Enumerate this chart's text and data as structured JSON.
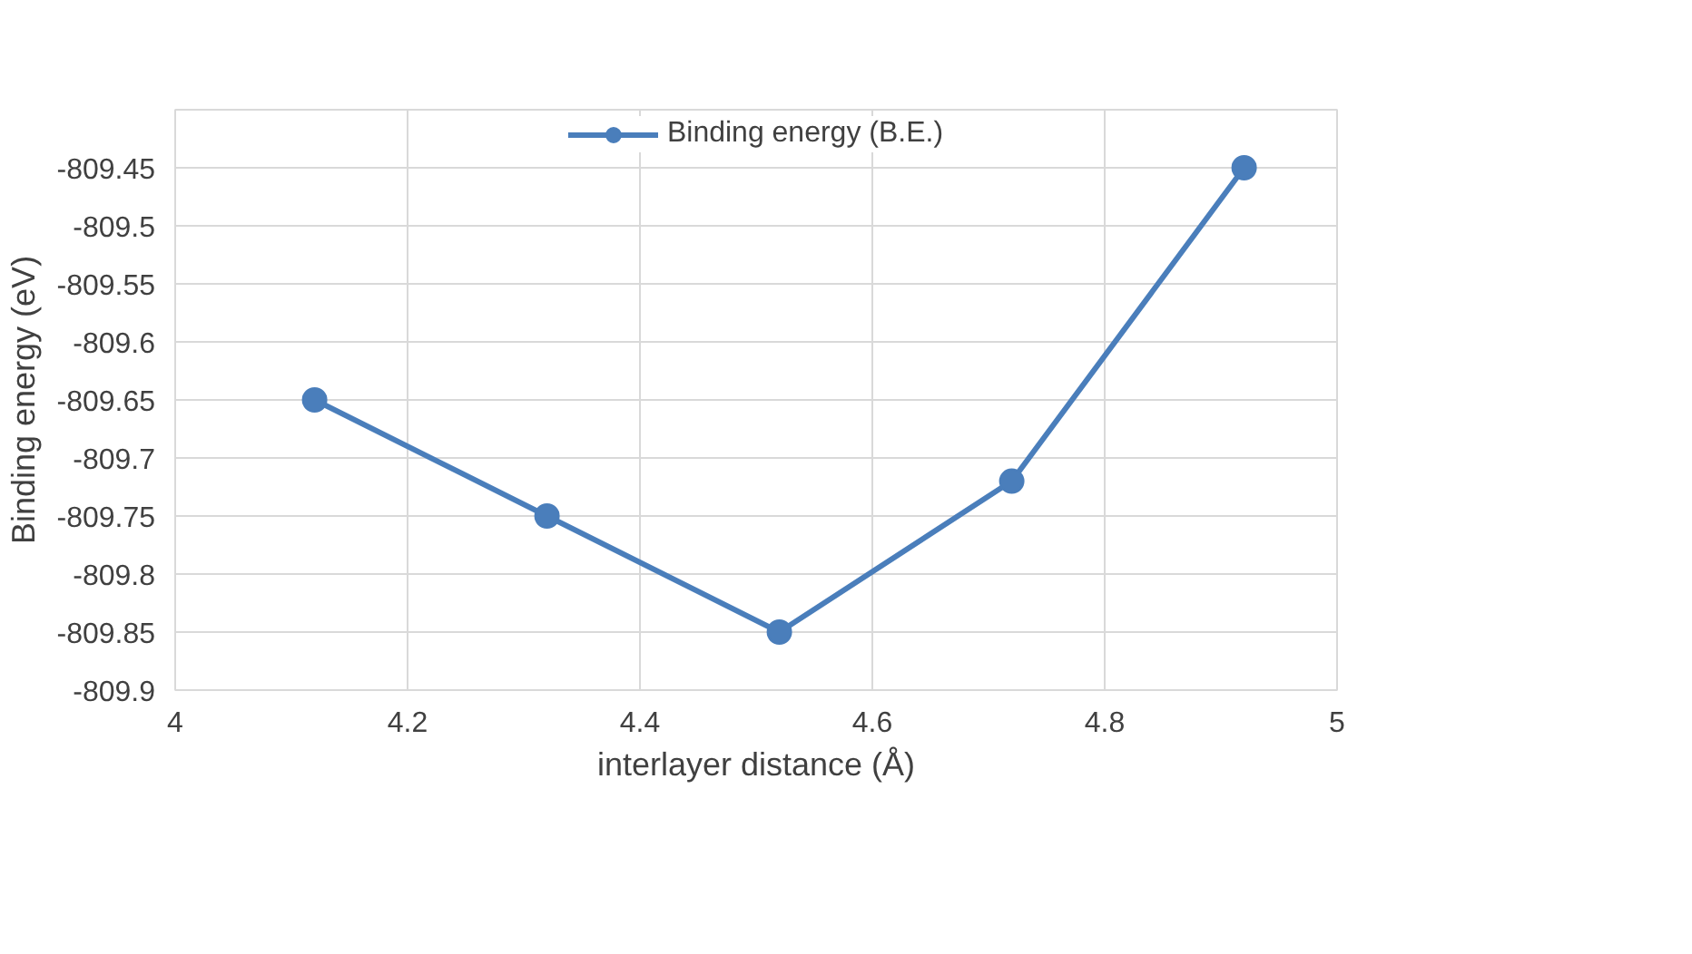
{
  "chart_data": {
    "type": "line",
    "xlabel": "interlayer distance (Å)",
    "ylabel": "Binding energy (eV)",
    "x": [
      4.12,
      4.32,
      4.52,
      4.72,
      4.92
    ],
    "series": [
      {
        "name": "Binding energy (B.E.)",
        "color": "#4a7ebb",
        "values": [
          -809.65,
          -809.75,
          -809.85,
          -809.72,
          -809.45
        ]
      }
    ],
    "xlim": [
      4,
      5
    ],
    "xticks": [
      4,
      4.2,
      4.4,
      4.6,
      4.8,
      5
    ],
    "ylim": [
      -809.9,
      -809.4
    ],
    "yticks": [
      -809.9,
      -809.85,
      -809.8,
      -809.75,
      -809.7,
      -809.65,
      -809.6,
      -809.55,
      -809.5,
      -809.45,
      {
        "value": -809.4,
        "label": null
      }
    ],
    "grid": true,
    "legend": "top",
    "marker": "circle",
    "line_style": "solid"
  }
}
